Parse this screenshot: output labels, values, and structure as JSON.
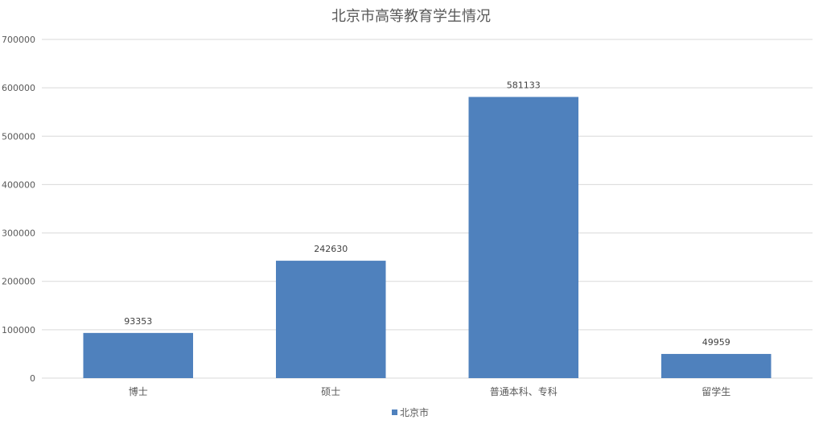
{
  "chart_data": {
    "type": "bar",
    "title": "北京市高等教育学生情况",
    "categories": [
      "博士",
      "硕士",
      "普通本科、专科",
      "留学生"
    ],
    "series": [
      {
        "name": "北京市",
        "values": [
          93353,
          242630,
          581133,
          49959
        ],
        "color": "#4F81BD"
      }
    ],
    "ylim": [
      0,
      700000
    ],
    "yticks": [
      0,
      100000,
      200000,
      300000,
      400000,
      500000,
      600000,
      700000
    ],
    "grid": true,
    "data_labels": true,
    "legend": "bottom",
    "colors": {
      "grid": "#D9D9D9",
      "text": "#595959"
    }
  }
}
